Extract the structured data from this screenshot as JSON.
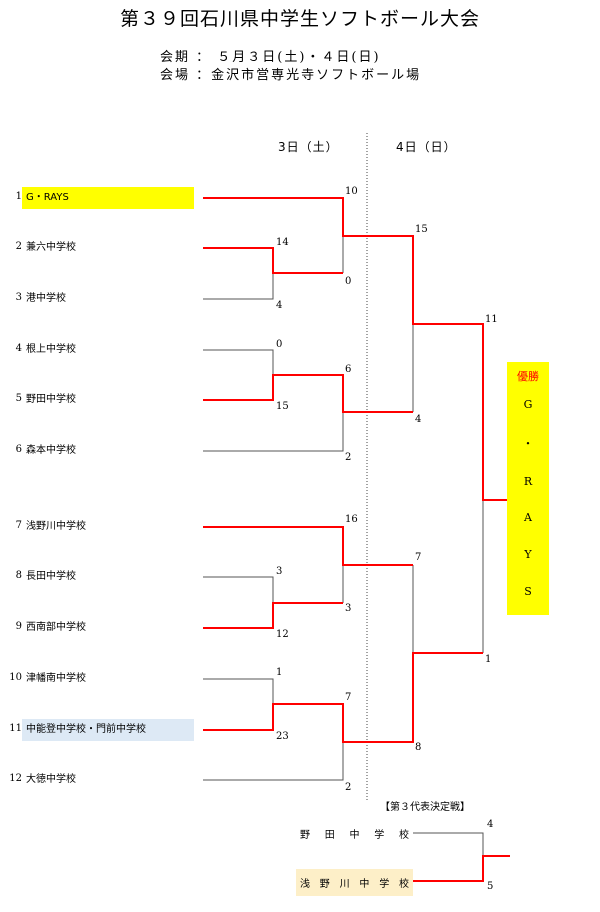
{
  "title": "第３９回石川県中学生ソフトボール大会",
  "info": {
    "period": "会期 ： ５月３日(土)・４日(日)",
    "venue": "会場 ：金沢市営専光寺ソフトボール場"
  },
  "days": [
    "3日（土）",
    "4日（日）"
  ],
  "colors": {
    "winner_line": "#ff0000",
    "champion_bg": "#ffff00",
    "highlight_bg": "#dde9f5",
    "third_bg": "#fdefc8"
  },
  "teams": [
    {
      "no": "1",
      "name": "G・RAYS",
      "highlight": "champion"
    },
    {
      "no": "2",
      "name": "兼六中学校"
    },
    {
      "no": "3",
      "name": "港中学校"
    },
    {
      "no": "4",
      "name": "根上中学校"
    },
    {
      "no": "5",
      "name": "野田中学校"
    },
    {
      "no": "6",
      "name": "森本中学校"
    },
    {
      "no": "7",
      "name": "浅野川中学校"
    },
    {
      "no": "8",
      "name": "長田中学校"
    },
    {
      "no": "9",
      "name": "西南部中学校"
    },
    {
      "no": "10",
      "name": "津幡南中学校"
    },
    {
      "no": "11",
      "name": "中能登中学校・門前中学校",
      "highlight": "blue"
    },
    {
      "no": "12",
      "name": "大徳中学校"
    }
  ],
  "scores": {
    "r1": [
      [
        "14",
        "4"
      ],
      [
        "0",
        "15"
      ],
      [
        "3",
        "12"
      ],
      [
        "1",
        "23"
      ]
    ],
    "r2": [
      [
        "10",
        "0"
      ],
      [
        "6",
        "2"
      ],
      [
        "16",
        "3"
      ],
      [
        "7",
        "2"
      ]
    ],
    "semi": [
      [
        "15",
        "4"
      ],
      [
        "7",
        "8"
      ]
    ],
    "final": [
      "11",
      "1"
    ]
  },
  "champion": {
    "label": "優勝",
    "name": "G・RAYS"
  },
  "third_place": {
    "title": "【第３代表決定戦】",
    "teams": [
      "野田中学校",
      "浅野川中学校"
    ],
    "scores": [
      "4",
      "5"
    ]
  }
}
